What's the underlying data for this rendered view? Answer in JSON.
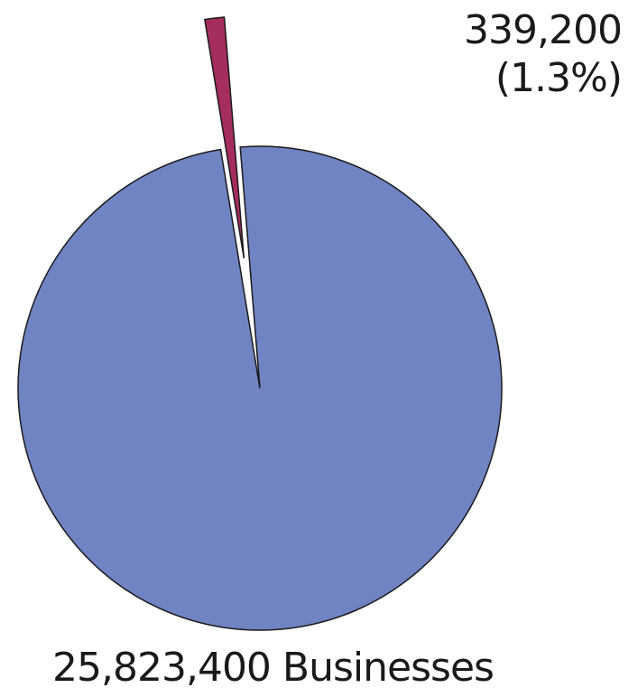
{
  "chart_data": {
    "type": "pie",
    "title": "",
    "slices": [
      {
        "value": 25823400,
        "label": "25,823,400 Businesses",
        "color": "#7083c3",
        "exploded": false
      },
      {
        "value": 339200,
        "label_value": "339,200",
        "label_percent": "(1.3%)",
        "percent": 1.3,
        "color": "#a62d5f",
        "exploded": true
      }
    ],
    "start_angle": "12 o'clock",
    "direction": "clockwise",
    "legend": "none"
  }
}
